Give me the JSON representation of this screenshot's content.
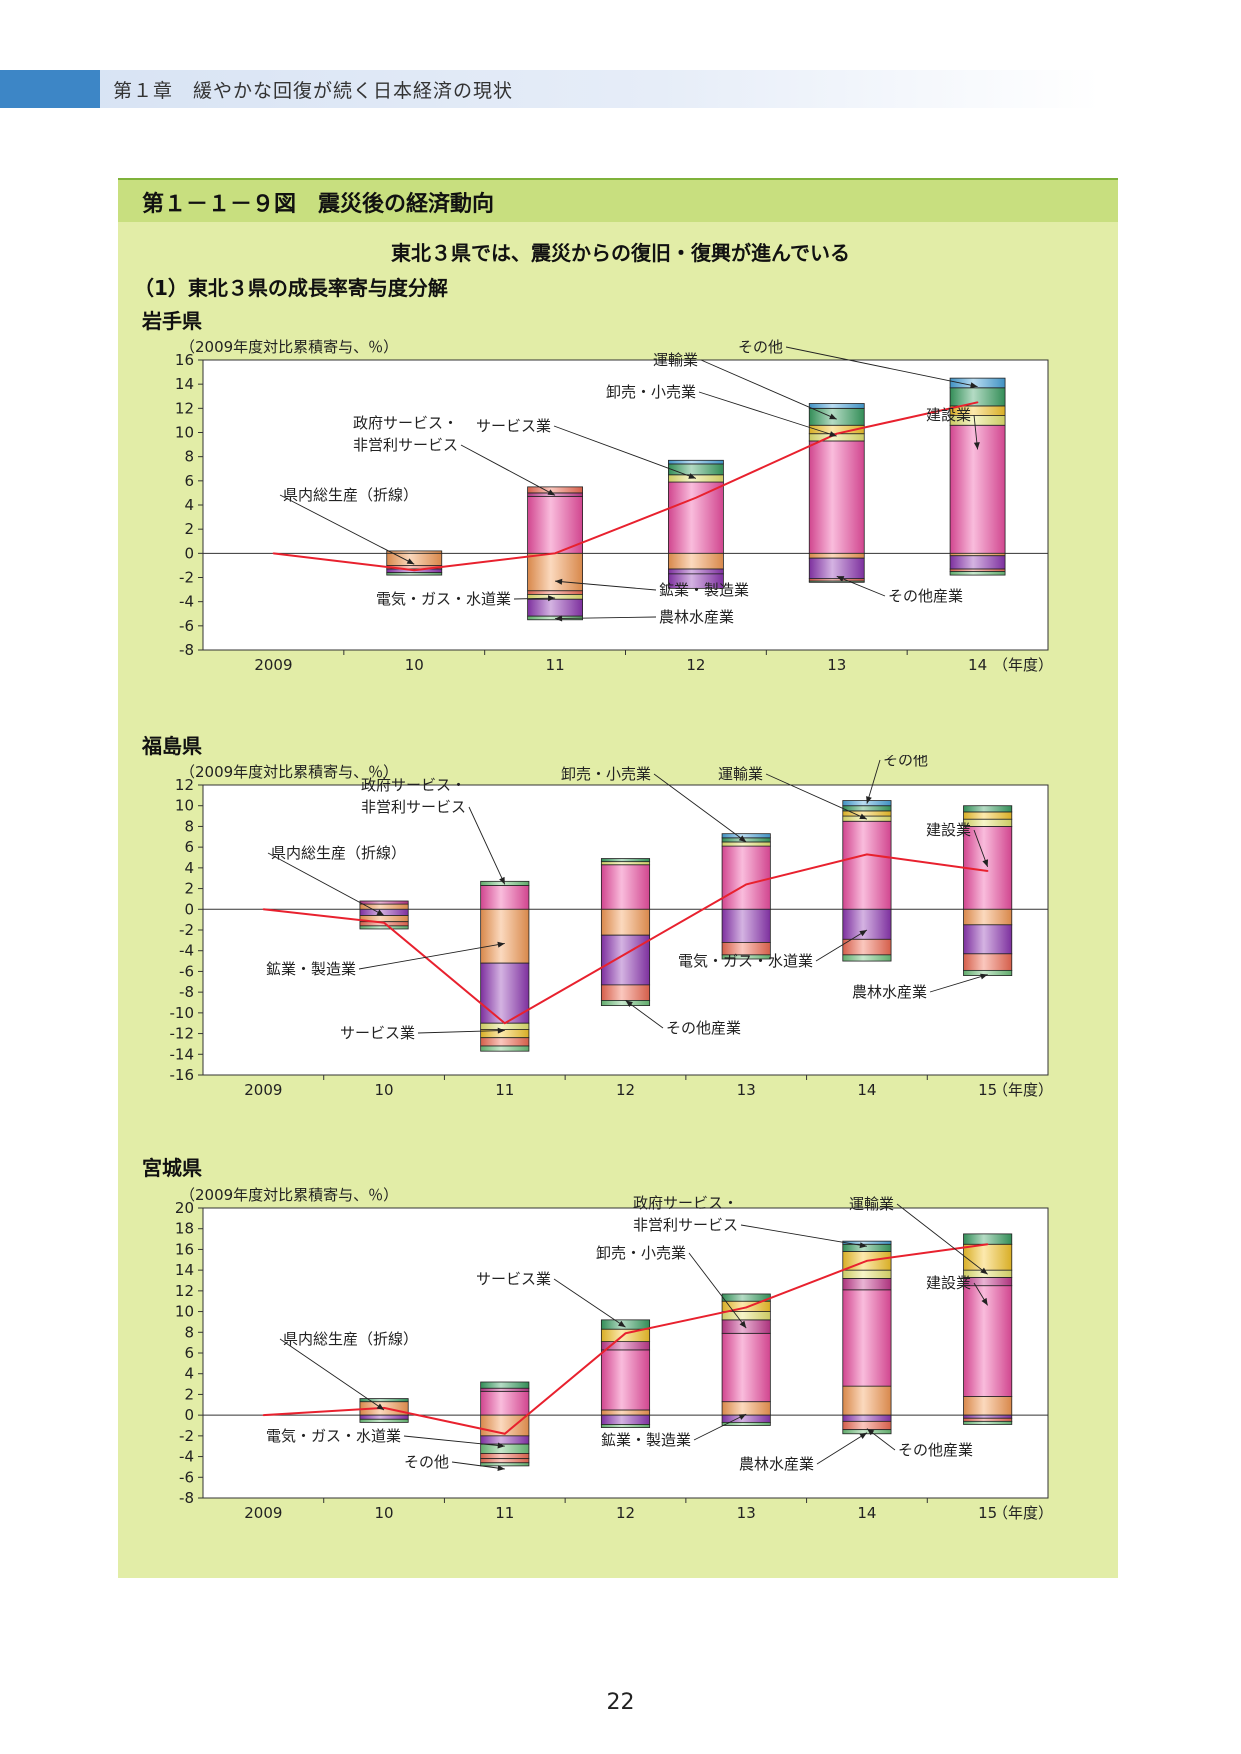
{
  "header": {
    "chapter": "第１章　緩やかな回復が続く日本経済の現状"
  },
  "figure": {
    "title": "第１－１－９図　震災後の経済動向",
    "subtitle": "東北３県では、震災からの復旧・復興が進んでいる",
    "section": "（1）東北３県の成長率寄与度分解"
  },
  "colors": {
    "建設業": "#ee4fa3",
    "鉱業・製造業": "#f59a55",
    "電気・ガス・水道業": "#8e36b3",
    "その他産業": "#f16b54",
    "農林水産業": "#6ec27b",
    "サービス業": "#e7e570",
    "卸売・小売業": "#f6c62b",
    "運輸業": "#3aa063",
    "政府サービス・非営利サービス": "#c43a8e",
    "その他": "#49a5dc",
    "県内総生産": "#e8212e"
  },
  "page_number": "22",
  "chart_data": [
    {
      "type": "bar",
      "title": "岩手県",
      "ylabel": "（2009年度対比累積寄与、％）",
      "xunit": "（年度）",
      "categories": [
        "2009",
        "10",
        "11",
        "12",
        "13",
        "14"
      ],
      "ylim": [
        -8,
        16
      ],
      "yticks": [
        -8,
        -6,
        -4,
        -2,
        0,
        2,
        4,
        6,
        8,
        10,
        12,
        14,
        16
      ],
      "stacks": [
        [],
        [
          {
            "k": "鉱業・製造業",
            "v": 0.2
          },
          {
            "k": "鉱業・製造業",
            "v": -1.0
          },
          {
            "k": "その他産業",
            "v": -0.3
          },
          {
            "k": "電気・ガス・水道業",
            "v": -0.3
          },
          {
            "k": "農林水産業",
            "v": -0.2
          }
        ],
        [
          {
            "k": "建設業",
            "v": 4.7
          },
          {
            "k": "政府サービス・非営利サービス",
            "v": 0.3
          },
          {
            "k": "その他産業",
            "v": 0.5
          },
          {
            "k": "鉱業・製造業",
            "v": -3.1
          },
          {
            "k": "その他産業",
            "v": -0.3
          },
          {
            "k": "サービス業",
            "v": -0.4
          },
          {
            "k": "電気・ガス・水道業",
            "v": -1.4
          },
          {
            "k": "農林水産業",
            "v": -0.3
          }
        ],
        [
          {
            "k": "建設業",
            "v": 5.9
          },
          {
            "k": "サービス業",
            "v": 0.6
          },
          {
            "k": "運輸業",
            "v": 0.9
          },
          {
            "k": "その他",
            "v": 0.3
          },
          {
            "k": "鉱業・製造業",
            "v": -1.3
          },
          {
            "k": "電気・ガス・水道業",
            "v": -0.4
          },
          {
            "k": "電気・ガス・水道業",
            "v": -1.2
          }
        ],
        [
          {
            "k": "建設業",
            "v": 9.3
          },
          {
            "k": "サービス業",
            "v": 0.6
          },
          {
            "k": "卸売・小売業",
            "v": 0.7
          },
          {
            "k": "運輸業",
            "v": 1.4
          },
          {
            "k": "その他",
            "v": 0.4
          },
          {
            "k": "鉱業・製造業",
            "v": -0.4
          },
          {
            "k": "電気・ガス・水道業",
            "v": -1.7
          },
          {
            "k": "その他産業",
            "v": -0.2
          },
          {
            "k": "農林水産業",
            "v": -0.1
          }
        ],
        [
          {
            "k": "建設業",
            "v": 10.6
          },
          {
            "k": "サービス業",
            "v": 0.8
          },
          {
            "k": "卸売・小売業",
            "v": 0.8
          },
          {
            "k": "運輸業",
            "v": 1.5
          },
          {
            "k": "その他",
            "v": 0.8
          },
          {
            "k": "鉱業・製造業",
            "v": -0.2
          },
          {
            "k": "電気・ガス・水道業",
            "v": -1.1
          },
          {
            "k": "その他産業",
            "v": -0.2
          },
          {
            "k": "農林水産業",
            "v": -0.3
          }
        ]
      ],
      "line": [
        0,
        -1.4,
        0,
        4.6,
        9.9,
        12.5
      ],
      "labels": [
        {
          "text": "運輸業",
          "lx": 580,
          "ly": 35,
          "anchor": "end",
          "tc": 4,
          "tv": 11.1
        },
        {
          "text": "その他",
          "lx": 665,
          "ly": 22,
          "anchor": "end",
          "tc": 5,
          "tv": 13.8
        },
        {
          "text": "卸売・小売業",
          "lx": 578,
          "ly": 67,
          "anchor": "end",
          "tc": 4,
          "tv": 9.7
        },
        {
          "text": "サービス業",
          "lx": 433,
          "ly": 101,
          "anchor": "end",
          "tc": 3,
          "tv": 6.2
        },
        {
          "text": "政府サービス・",
          "lx": 235,
          "ly": 98,
          "anchor": "start"
        },
        {
          "text": "非営利サービス",
          "lx": 235,
          "ly": 120,
          "anchor": "start",
          "tc": 2,
          "tv": 4.8
        },
        {
          "text": "建設業",
          "lx": 808,
          "ly": 90,
          "anchor": "start",
          "tc": 5,
          "tv": 8.6
        },
        {
          "text": "県内総生産（折線）",
          "lx": 165,
          "ly": 170,
          "anchor": "start",
          "tc": 1,
          "tv": -0.9
        },
        {
          "text": "鉱業・製造業",
          "lx": 541,
          "ly": 265,
          "anchor": "start",
          "tc": 2,
          "tv": -2.3
        },
        {
          "text": "その他産業",
          "lx": 770,
          "ly": 271,
          "anchor": "start",
          "tc": 4,
          "tv": -1.9
        },
        {
          "text": "電気・ガス・水道業",
          "lx": 258,
          "ly": 274,
          "anchor": "start",
          "tc": 2,
          "tv": -3.7
        },
        {
          "text": "農林水産業",
          "lx": 541,
          "ly": 292,
          "anchor": "start",
          "tc": 2,
          "tv": -5.4
        }
      ]
    },
    {
      "type": "bar",
      "title": "福島県",
      "ylabel": "（2009年度対比累積寄与、％）",
      "xunit": "（年度）",
      "categories": [
        "2009",
        "10",
        "11",
        "12",
        "13",
        "14",
        "15"
      ],
      "ylim": [
        -16,
        12
      ],
      "yticks": [
        -16,
        -14,
        -12,
        -10,
        -8,
        -6,
        -4,
        -2,
        0,
        2,
        4,
        6,
        8,
        10,
        12
      ],
      "stacks": [
        [],
        [
          {
            "k": "鉱業・製造業",
            "v": 0.5
          },
          {
            "k": "政府サービス・非営利サービス",
            "v": 0.3
          },
          {
            "k": "電気・ガス・水道業",
            "v": -0.6
          },
          {
            "k": "鉱業・製造業",
            "v": -0.6
          },
          {
            "k": "その他産業",
            "v": -0.4
          },
          {
            "k": "農林水産業",
            "v": -0.3
          }
        ],
        [
          {
            "k": "建設業",
            "v": 2.3
          },
          {
            "k": "農林水産業",
            "v": 0.4
          },
          {
            "k": "鉱業・製造業",
            "v": -5.2
          },
          {
            "k": "電気・ガス・水道業",
            "v": -5.8
          },
          {
            "k": "サービス業",
            "v": -0.6
          },
          {
            "k": "卸売・小売業",
            "v": -0.8
          },
          {
            "k": "その他産業",
            "v": -0.8
          },
          {
            "k": "農林水産業",
            "v": -0.5
          }
        ],
        [
          {
            "k": "建設業",
            "v": 4.3
          },
          {
            "k": "サービス業",
            "v": 0.3
          },
          {
            "k": "運輸業",
            "v": 0.3
          },
          {
            "k": "鉱業・製造業",
            "v": -2.5
          },
          {
            "k": "電気・ガス・水道業",
            "v": -4.8
          },
          {
            "k": "その他産業",
            "v": -1.5
          },
          {
            "k": "農林水産業",
            "v": -0.5
          }
        ],
        [
          {
            "k": "建設業",
            "v": 6.1
          },
          {
            "k": "サービス業",
            "v": 0.4
          },
          {
            "k": "運輸業",
            "v": 0.4
          },
          {
            "k": "その他",
            "v": 0.4
          },
          {
            "k": "電気・ガス・水道業",
            "v": -3.2
          },
          {
            "k": "その他産業",
            "v": -1.2
          },
          {
            "k": "農林水産業",
            "v": -0.4
          }
        ],
        [
          {
            "k": "建設業",
            "v": 8.5
          },
          {
            "k": "サービス業",
            "v": 0.5
          },
          {
            "k": "卸売・小売業",
            "v": 0.5
          },
          {
            "k": "運輸業",
            "v": 0.5
          },
          {
            "k": "その他",
            "v": 0.5
          },
          {
            "k": "電気・ガス・水道業",
            "v": -2.9
          },
          {
            "k": "その他産業",
            "v": -1.5
          },
          {
            "k": "農林水産業",
            "v": -0.6
          }
        ],
        [
          {
            "k": "建設業",
            "v": 8.0
          },
          {
            "k": "サービス業",
            "v": 0.7
          },
          {
            "k": "卸売・小売業",
            "v": 0.7
          },
          {
            "k": "運輸業",
            "v": 0.6
          },
          {
            "k": "鉱業・製造業",
            "v": -1.5
          },
          {
            "k": "電気・ガス・水道業",
            "v": -2.8
          },
          {
            "k": "その他産業",
            "v": -1.6
          },
          {
            "k": "農林水産業",
            "v": -0.5
          }
        ]
      ],
      "line": [
        0,
        -1.3,
        -11.0,
        -4.3,
        2.4,
        5.3,
        3.7
      ],
      "labels": [
        {
          "text": "卸売・小売業",
          "lx": 443,
          "ly": 24,
          "anchor": "start",
          "tc": 4,
          "tv": 6.5
        },
        {
          "text": "運輸業",
          "lx": 600,
          "ly": 24,
          "anchor": "start",
          "tc": 5,
          "tv": 8.7
        },
        {
          "text": "その他",
          "lx": 765,
          "ly": 10,
          "anchor": "start",
          "tc": 5,
          "tv": 10.2
        },
        {
          "text": "政府サービス・",
          "lx": 243,
          "ly": 35,
          "anchor": "start"
        },
        {
          "text": "非営利サービス",
          "lx": 243,
          "ly": 57,
          "anchor": "start",
          "tc": 2,
          "tv": 2.4
        },
        {
          "text": "建設業",
          "lx": 808,
          "ly": 80,
          "anchor": "start",
          "tc": 6,
          "tv": 4.1
        },
        {
          "text": "県内総生産（折線）",
          "lx": 153,
          "ly": 103,
          "anchor": "start",
          "tc": 1,
          "tv": -0.6
        },
        {
          "text": "鉱業・製造業",
          "lx": 148,
          "ly": 219,
          "anchor": "start",
          "tc": 2,
          "tv": -3.3
        },
        {
          "text": "電気・ガス・水道業",
          "lx": 560,
          "ly": 211,
          "anchor": "start",
          "tc": 5,
          "tv": -2.0
        },
        {
          "text": "農林水産業",
          "lx": 734,
          "ly": 242,
          "anchor": "start",
          "tc": 6,
          "tv": -6.3
        },
        {
          "text": "その他産業",
          "lx": 548,
          "ly": 278,
          "anchor": "start",
          "tc": 3,
          "tv": -8.8
        },
        {
          "text": "サービス業",
          "lx": 222,
          "ly": 283,
          "anchor": "start",
          "tc": 2,
          "tv": -11.7
        }
      ]
    },
    {
      "type": "bar",
      "title": "宮城県",
      "ylabel": "（2009年度対比累積寄与、％）",
      "xunit": "（年度）",
      "categories": [
        "2009",
        "10",
        "11",
        "12",
        "13",
        "14",
        "15"
      ],
      "ylim": [
        -8,
        20
      ],
      "yticks": [
        -8,
        -6,
        -4,
        -2,
        0,
        2,
        4,
        6,
        8,
        10,
        12,
        14,
        16,
        18,
        20
      ],
      "stacks": [
        [],
        [
          {
            "k": "鉱業・製造業",
            "v": 1.3
          },
          {
            "k": "運輸業",
            "v": 0.3
          },
          {
            "k": "電気・ガス・水道業",
            "v": -0.4
          },
          {
            "k": "農林水産業",
            "v": -0.3
          }
        ],
        [
          {
            "k": "建設業",
            "v": 2.3
          },
          {
            "k": "政府サービス・非営利サービス",
            "v": 0.3
          },
          {
            "k": "運輸業",
            "v": 0.6
          },
          {
            "k": "鉱業・製造業",
            "v": -2.0
          },
          {
            "k": "電気・ガス・水道業",
            "v": -0.8
          },
          {
            "k": "農林水産業",
            "v": -0.9
          },
          {
            "k": "その他産業",
            "v": -0.5
          },
          {
            "k": "その他産業",
            "v": -0.4
          },
          {
            "k": "農林水産業",
            "v": -0.3
          }
        ],
        [
          {
            "k": "鉱業・製造業",
            "v": 0.5
          },
          {
            "k": "建設業",
            "v": 5.8
          },
          {
            "k": "政府サービス・非営利サービス",
            "v": 0.8
          },
          {
            "k": "卸売・小売業",
            "v": 1.2
          },
          {
            "k": "運輸業",
            "v": 0.9
          },
          {
            "k": "電気・ガス・水道業",
            "v": -0.9
          },
          {
            "k": "農林水産業",
            "v": -0.3
          }
        ],
        [
          {
            "k": "鉱業・製造業",
            "v": 1.3
          },
          {
            "k": "建設業",
            "v": 6.6
          },
          {
            "k": "政府サービス・非営利サービス",
            "v": 1.3
          },
          {
            "k": "サービス業",
            "v": 0.8
          },
          {
            "k": "卸売・小売業",
            "v": 1.0
          },
          {
            "k": "運輸業",
            "v": 0.7
          },
          {
            "k": "電気・ガス・水道業",
            "v": -0.7
          },
          {
            "k": "農林水産業",
            "v": -0.3
          }
        ],
        [
          {
            "k": "鉱業・製造業",
            "v": 2.8
          },
          {
            "k": "建設業",
            "v": 9.3
          },
          {
            "k": "政府サービス・非営利サービス",
            "v": 1.1
          },
          {
            "k": "サービス業",
            "v": 0.8
          },
          {
            "k": "卸売・小売業",
            "v": 1.8
          },
          {
            "k": "運輸業",
            "v": 0.7
          },
          {
            "k": "その他",
            "v": 0.3
          },
          {
            "k": "電気・ガス・水道業",
            "v": -0.6
          },
          {
            "k": "その他産業",
            "v": -0.8
          },
          {
            "k": "農林水産業",
            "v": -0.4
          }
        ],
        [
          {
            "k": "鉱業・製造業",
            "v": 1.8
          },
          {
            "k": "建設業",
            "v": 10.7
          },
          {
            "k": "政府サービス・非営利サービス",
            "v": 0.8
          },
          {
            "k": "サービス業",
            "v": 0.7
          },
          {
            "k": "卸売・小売業",
            "v": 2.5
          },
          {
            "k": "運輸業",
            "v": 1.0
          },
          {
            "k": "電気・ガス・水道業",
            "v": -0.3
          },
          {
            "k": "その他産業",
            "v": -0.3
          },
          {
            "k": "農林水産業",
            "v": -0.3
          }
        ]
      ],
      "line": [
        0,
        0.7,
        -1.8,
        7.9,
        10.4,
        14.9,
        16.5
      ],
      "labels": [
        {
          "text": "政府サービス・",
          "lx": 515,
          "ly": 30,
          "anchor": "start"
        },
        {
          "text": "非営利サービス",
          "lx": 515,
          "ly": 52,
          "anchor": "start",
          "tc": 5,
          "tv": 16.3
        },
        {
          "text": "運輸業",
          "lx": 731,
          "ly": 31,
          "anchor": "start",
          "tc": 6,
          "tv": 13.6
        },
        {
          "text": "卸売・小売業",
          "lx": 478,
          "ly": 80,
          "anchor": "start",
          "tc": 4,
          "tv": 8.4
        },
        {
          "text": "サービス業",
          "lx": 358,
          "ly": 106,
          "anchor": "start",
          "tc": 3,
          "tv": 8.5
        },
        {
          "text": "建設業",
          "lx": 808,
          "ly": 110,
          "anchor": "start",
          "tc": 6,
          "tv": 10.6
        },
        {
          "text": "県内総生産（折線）",
          "lx": 165,
          "ly": 166,
          "anchor": "start",
          "tc": 1,
          "tv": 0.5
        },
        {
          "text": "電気・ガス・水道業",
          "lx": 148,
          "ly": 263,
          "anchor": "start",
          "tc": 2,
          "tv": -3.0
        },
        {
          "text": "鉱業・製造業",
          "lx": 483,
          "ly": 267,
          "anchor": "start",
          "tc": 4,
          "tv": 0.1
        },
        {
          "text": "その他産業",
          "lx": 780,
          "ly": 277,
          "anchor": "start",
          "tc": 5,
          "tv": -1.3
        },
        {
          "text": "その他",
          "lx": 286,
          "ly": 289,
          "anchor": "start",
          "tc": 2,
          "tv": -5.2
        },
        {
          "text": "農林水産業",
          "lx": 621,
          "ly": 291,
          "anchor": "start",
          "tc": 5,
          "tv": -1.7
        }
      ]
    }
  ]
}
